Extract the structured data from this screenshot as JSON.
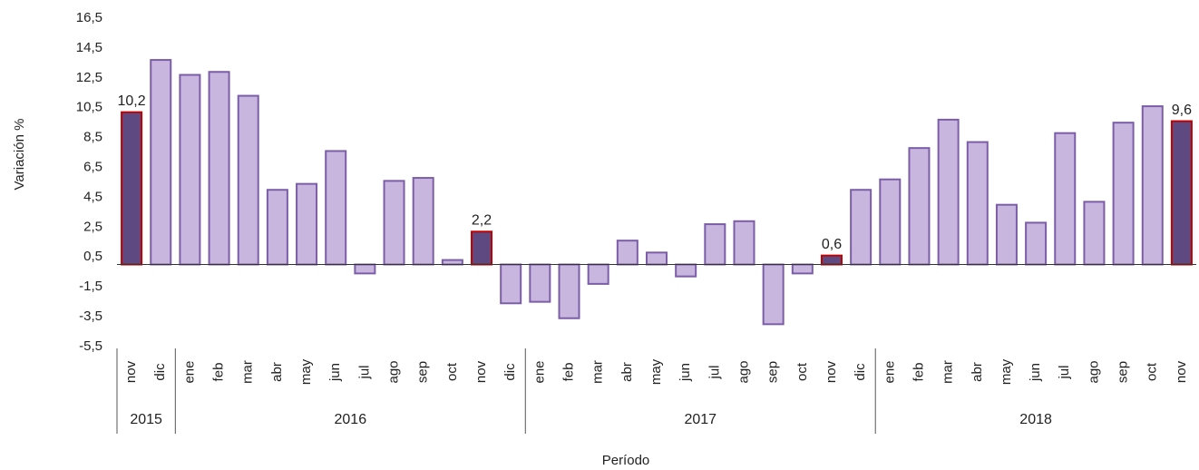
{
  "chart_data": {
    "type": "bar",
    "x_label": "Período",
    "y_label": "Variación %",
    "categories": [
      "nov",
      "dic",
      "ene",
      "feb",
      "mar",
      "abr",
      "may",
      "jun",
      "jul",
      "ago",
      "sep",
      "oct",
      "nov",
      "dic",
      "ene",
      "feb",
      "mar",
      "abr",
      "may",
      "jun",
      "jul",
      "ago",
      "sep",
      "oct",
      "nov",
      "dic",
      "ene",
      "feb",
      "mar",
      "abr",
      "may",
      "jun",
      "jul",
      "ago",
      "sep",
      "oct",
      "nov"
    ],
    "year_groups": [
      {
        "label": "2015",
        "span": 2
      },
      {
        "label": "2016",
        "span": 12
      },
      {
        "label": "2017",
        "span": 12
      },
      {
        "label": "2018",
        "span": 11
      }
    ],
    "values": [
      10.2,
      13.7,
      12.7,
      12.9,
      11.3,
      5.0,
      5.4,
      7.6,
      -0.6,
      5.6,
      5.8,
      0.3,
      2.2,
      -2.6,
      -2.5,
      -3.6,
      -1.3,
      1.6,
      0.8,
      -0.8,
      2.7,
      2.9,
      -4.0,
      -0.6,
      0.6,
      5.0,
      5.7,
      7.8,
      9.7,
      8.2,
      4.0,
      2.8,
      8.8,
      4.2,
      9.5,
      10.6,
      9.6
    ],
    "value_labels": [
      "10,2",
      null,
      null,
      null,
      null,
      null,
      null,
      null,
      null,
      null,
      null,
      null,
      "2,2",
      null,
      null,
      null,
      null,
      null,
      null,
      null,
      null,
      null,
      null,
      null,
      "0,6",
      null,
      null,
      null,
      null,
      null,
      null,
      null,
      null,
      null,
      null,
      null,
      "9,6"
    ],
    "color": "#c9b6de",
    "highlight_color": "#5e4a80",
    "edge_color": "#7b5ea7",
    "highlight_edge_color": "#c00000",
    "highlighted": [
      true,
      false,
      false,
      false,
      false,
      false,
      false,
      false,
      false,
      false,
      false,
      false,
      true,
      false,
      false,
      false,
      false,
      false,
      false,
      false,
      false,
      false,
      false,
      false,
      true,
      false,
      false,
      false,
      false,
      false,
      false,
      false,
      false,
      false,
      false,
      false,
      true
    ],
    "ylim": [
      -5.5,
      16.5
    ],
    "yticks": [
      {
        "value": 16.5,
        "label": "16,5"
      },
      {
        "value": 14.5,
        "label": "14,5"
      },
      {
        "value": 12.5,
        "label": "12,5"
      },
      {
        "value": 10.5,
        "label": "10,5"
      },
      {
        "value": 8.5,
        "label": "8,5"
      },
      {
        "value": 6.5,
        "label": "6,5"
      },
      {
        "value": 4.5,
        "label": "4,5"
      },
      {
        "value": 2.5,
        "label": "2,5"
      },
      {
        "value": 0.5,
        "label": "0,5"
      },
      {
        "value": -1.5,
        "label": "-1,5"
      },
      {
        "value": -3.5,
        "label": "-3,5"
      },
      {
        "value": -5.5,
        "label": "-5,5"
      }
    ],
    "grid": false
  }
}
